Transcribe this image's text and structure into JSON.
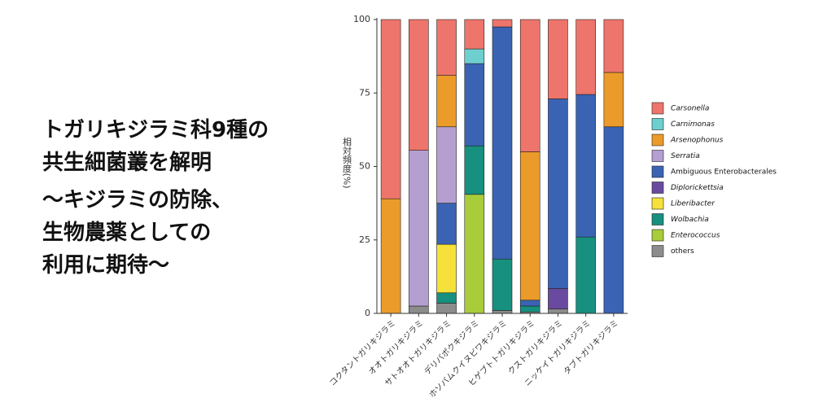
{
  "headline": [
    "トガリキジラミ科9種の",
    "共生細菌叢を解明",
    "～キジラミの防除、",
    "生物農薬としての",
    "利用に期待～"
  ],
  "chart_data": {
    "type": "stacked_bar",
    "y_label": "相対頻度(%)",
    "categories": [
      "コクタントガリキジラミ",
      "オオトガリキジラミ",
      "サトオオトガリキジラミ",
      "デリバポクキジラミ",
      "ホソバムクイヌビワキジラミ",
      "ヒゲブトトガリキジラミ",
      "クストガリキジラミ",
      "ニッケイトガリキジラミ",
      "タブトガリキジラミ"
    ],
    "series": [
      {
        "name": "Carsonella",
        "color": "#ee756b",
        "italic": true,
        "values": [
          61,
          44.5,
          19,
          10,
          2.5,
          45,
          27,
          25.5,
          18
        ]
      },
      {
        "name": "Carnimonas",
        "color": "#6ecfcf",
        "italic": true,
        "values": [
          0,
          0,
          0,
          5,
          0,
          0,
          0,
          0,
          0
        ]
      },
      {
        "name": "Arsenophonus",
        "color": "#eb9b2a",
        "italic": true,
        "values": [
          39,
          0,
          17.5,
          0,
          0,
          50.5,
          0,
          0,
          18.5
        ]
      },
      {
        "name": "Serratia",
        "color": "#b59fd0",
        "italic": true,
        "values": [
          0,
          53,
          26,
          0,
          0,
          0,
          0,
          0,
          0
        ]
      },
      {
        "name": "Ambiguous Enterobacterales",
        "color": "#3a63b3",
        "italic": false,
        "values": [
          0,
          0,
          14,
          28,
          79,
          2,
          64.5,
          48.5,
          63.5
        ]
      },
      {
        "name": "Diplorickettsia",
        "color": "#6a4a9e",
        "italic": true,
        "values": [
          0,
          0,
          0,
          0,
          0,
          0,
          7,
          0,
          0
        ]
      },
      {
        "name": "Liberibacter",
        "color": "#f5e13a",
        "italic": true,
        "values": [
          0,
          0,
          16.5,
          0,
          0,
          0,
          0,
          0,
          0
        ]
      },
      {
        "name": "Wolbachia",
        "color": "#17907f",
        "italic": true,
        "values": [
          0,
          0,
          3.5,
          16.5,
          17.5,
          2,
          0,
          26,
          0
        ]
      },
      {
        "name": "Enterococcus",
        "color": "#a9cc3b",
        "italic": true,
        "values": [
          0,
          0,
          0,
          40.5,
          0,
          0,
          0,
          0,
          0
        ]
      },
      {
        "name": "others",
        "color": "#8c8c8c",
        "italic": false,
        "values": [
          0,
          2.5,
          3.5,
          0,
          1,
          0.5,
          1.5,
          0,
          0
        ]
      }
    ],
    "ylim": [
      0,
      100
    ],
    "yticks": [
      0,
      25,
      50,
      75,
      100
    ],
    "legend": "right"
  }
}
